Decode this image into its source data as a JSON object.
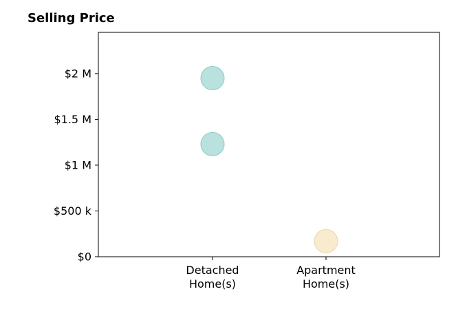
{
  "chart_data": {
    "type": "scatter",
    "title": "Selling Price",
    "xlabel": "",
    "ylabel": "",
    "categories": [
      {
        "lines": [
          "Detached",
          "Home(s)"
        ]
      },
      {
        "lines": [
          "Apartment",
          "Home(s)"
        ]
      }
    ],
    "ylim": [
      0,
      2450000
    ],
    "yticks": [
      {
        "value": 0,
        "label": "$0"
      },
      {
        "value": 500000,
        "label": "$500 k"
      },
      {
        "value": 1000000,
        "label": "$1 M"
      },
      {
        "value": 1500000,
        "label": "$1.5 M"
      },
      {
        "value": 2000000,
        "label": "$2 M"
      }
    ],
    "grid": false,
    "points": [
      {
        "category": 0,
        "value": 1950000,
        "color": "#a8dad6",
        "stroke": "#8ccac5"
      },
      {
        "category": 0,
        "value": 1230000,
        "color": "#a8dad6",
        "stroke": "#8ccac5"
      },
      {
        "category": 1,
        "value": 170000,
        "color": "#f6e6c2",
        "stroke": "#ecd7a8"
      }
    ]
  }
}
